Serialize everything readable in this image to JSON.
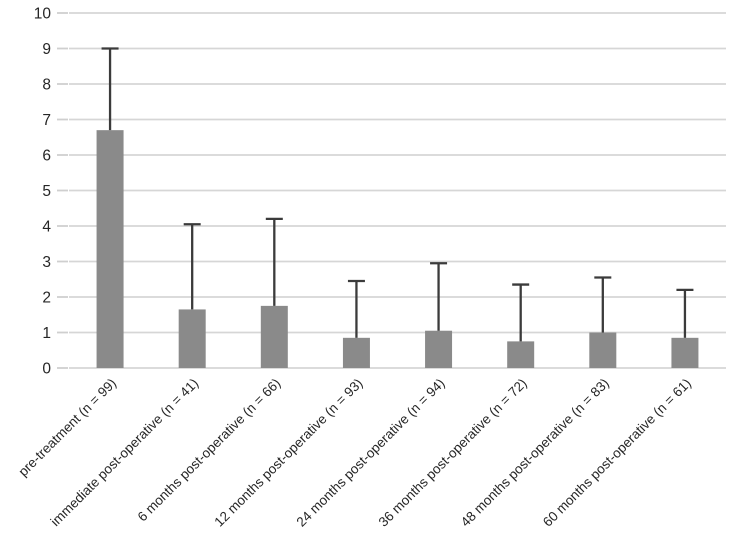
{
  "chart_data": {
    "type": "bar",
    "title": "",
    "xlabel": "",
    "ylabel": "",
    "categories": [
      "pre-treatment (n = 99)",
      "immediate post-operative (n = 41)",
      "6 months post-operative (n = 66)",
      "12 months post-operative (n = 93)",
      "24 months post-operative (n = 94)",
      "36 months post-operative (n = 72)",
      "48 months post-operative (n = 83)",
      "60 months post-operative (n = 61)"
    ],
    "values": [
      6.7,
      1.65,
      1.75,
      0.85,
      1.05,
      0.75,
      1.0,
      0.85
    ],
    "error_plus": [
      2.3,
      2.4,
      2.45,
      1.6,
      1.9,
      1.6,
      1.55,
      1.35
    ],
    "ylim": [
      0,
      10
    ],
    "ytick_step": 1,
    "ytick_labels": [
      "0",
      "1",
      "2",
      "3",
      "4",
      "5",
      "6",
      "7",
      "8",
      "9",
      "10"
    ],
    "grid": true,
    "legend": "none",
    "colors": {
      "bar_fill": "#8a8a8a",
      "error_bar": "#3b3b3b",
      "gridline": "#d6d6d6",
      "tick_mark": "#cfcfcf",
      "tick_label": "#262626",
      "background": "#ffffff"
    }
  }
}
